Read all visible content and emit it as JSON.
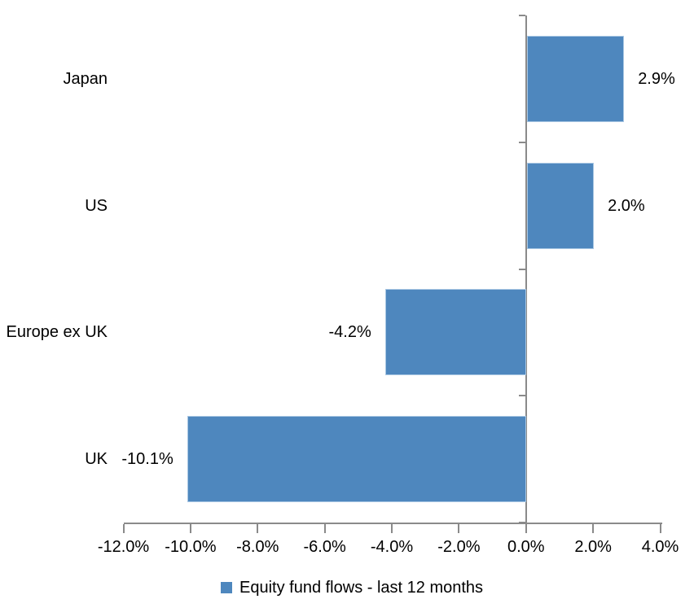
{
  "chart_data": {
    "type": "bar",
    "orientation": "horizontal",
    "title": "",
    "categories": [
      "Japan",
      "US",
      "Europe ex UK",
      "UK"
    ],
    "values": [
      2.9,
      2.0,
      -4.2,
      -10.1
    ],
    "data_labels": [
      "2.9%",
      "2.0%",
      "-4.2%",
      "-10.1%"
    ],
    "series_name": "Equity fund flows - last 12 months",
    "xlabel": "",
    "ylabel": "",
    "xlim": [
      -12,
      4
    ],
    "x_tick_values": [
      -12,
      -10,
      -8,
      -6,
      -4,
      -2,
      0,
      2,
      4
    ],
    "x_tick_labels": [
      "-12.0%",
      "-10.0%",
      "-8.0%",
      "-6.0%",
      "-4.0%",
      "-2.0%",
      "0.0%",
      "2.0%",
      "4.0%"
    ],
    "grid": false,
    "legend_position": "bottom-center",
    "colors": {
      "bar_fill": "#4E87BE",
      "bar_border": "#A9C7E3",
      "axis_line": "#8A8A8A",
      "text": "#000000",
      "background": "#FFFFFF"
    }
  }
}
